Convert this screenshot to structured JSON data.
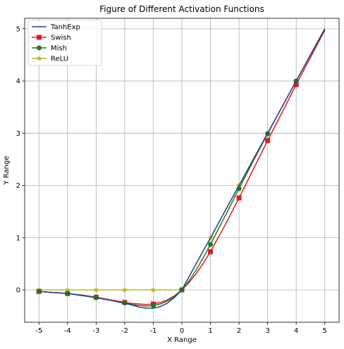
{
  "chart_data": {
    "type": "line",
    "title": "Figure of Different Activation Functions",
    "xlabel": "X Range",
    "ylabel": "Y Range",
    "xlim": [
      -5.5,
      5.5
    ],
    "ylim": [
      -0.62,
      5.2
    ],
    "xticks": [
      "-5",
      "-4",
      "-3",
      "-2",
      "-1",
      "0",
      "1",
      "2",
      "3",
      "4",
      "5"
    ],
    "yticks": [
      "0",
      "1",
      "2",
      "3",
      "4",
      "5"
    ],
    "grid": true,
    "legend_position": "top-left",
    "series": [
      {
        "name": "TanhExp",
        "color": "#2a3f9c",
        "marker": "none",
        "x": [
          -5,
          -4.5,
          -4,
          -3.5,
          -3,
          -2.5,
          -2,
          -1.75,
          -1.5,
          -1.25,
          -1,
          -0.75,
          -0.5,
          -0.25,
          0,
          0.25,
          0.5,
          0.75,
          1,
          1.5,
          2,
          2.5,
          3,
          3.5,
          4,
          4.5,
          5
        ],
        "y": [
          -0.03,
          -0.05,
          -0.07,
          -0.1,
          -0.15,
          -0.2,
          -0.26,
          -0.29,
          -0.33,
          -0.35,
          -0.35,
          -0.32,
          -0.25,
          -0.14,
          0,
          0.25,
          0.5,
          0.75,
          0.99,
          1.5,
          2.0,
          2.5,
          3.0,
          3.5,
          4.0,
          4.5,
          5.0
        ]
      },
      {
        "name": "Swish",
        "color": "#e31a1c",
        "marker": "square",
        "x": [
          -5,
          -4.5,
          -4,
          -3.5,
          -3,
          -2.5,
          -2,
          -1.75,
          -1.5,
          -1.25,
          -1,
          -0.75,
          -0.5,
          -0.25,
          0,
          0.25,
          0.5,
          0.75,
          1,
          1.5,
          2,
          2.5,
          3,
          3.5,
          4,
          4.5,
          5
        ],
        "y": [
          -0.03,
          -0.05,
          -0.07,
          -0.1,
          -0.14,
          -0.19,
          -0.24,
          -0.26,
          -0.27,
          -0.28,
          -0.27,
          -0.24,
          -0.19,
          -0.11,
          0,
          0.14,
          0.31,
          0.51,
          0.73,
          1.23,
          1.76,
          2.31,
          2.86,
          3.39,
          3.93,
          4.45,
          4.97
        ],
        "marker_x": [
          -5,
          -4,
          -3,
          -2,
          -1,
          0,
          1,
          2,
          3,
          4
        ],
        "marker_y": [
          -0.03,
          -0.07,
          -0.14,
          -0.24,
          -0.27,
          0,
          0.73,
          1.76,
          2.86,
          3.93
        ]
      },
      {
        "name": "Mish",
        "color": "#1e7b1e",
        "marker": "circle",
        "x": [
          -5,
          -4.5,
          -4,
          -3.5,
          -3,
          -2.5,
          -2,
          -1.75,
          -1.5,
          -1.25,
          -1,
          -0.75,
          -0.5,
          -0.25,
          0,
          0.25,
          0.5,
          0.75,
          1,
          1.5,
          2,
          2.5,
          3,
          3.5,
          4,
          4.5,
          5
        ],
        "y": [
          -0.03,
          -0.05,
          -0.07,
          -0.11,
          -0.15,
          -0.2,
          -0.25,
          -0.28,
          -0.3,
          -0.31,
          -0.3,
          -0.27,
          -0.21,
          -0.12,
          0,
          0.17,
          0.38,
          0.62,
          0.87,
          1.4,
          1.94,
          2.47,
          2.99,
          3.5,
          4.0,
          4.5,
          5.0
        ],
        "marker_x": [
          -5,
          -4,
          -3,
          -2,
          -1,
          0,
          1,
          2,
          3,
          4
        ],
        "marker_y": [
          -0.03,
          -0.07,
          -0.15,
          -0.25,
          -0.3,
          0,
          0.87,
          1.94,
          2.99,
          4.0
        ]
      },
      {
        "name": "ReLU",
        "color": "#bcbd22",
        "marker": "star",
        "x": [
          -5,
          0,
          5
        ],
        "y": [
          0,
          0,
          5
        ],
        "marker_x": [
          -5,
          -4,
          -3,
          -2,
          -1,
          0,
          1,
          2,
          3,
          4
        ],
        "marker_y": [
          0,
          0,
          0,
          0,
          0,
          0,
          1,
          2,
          3,
          4
        ]
      }
    ]
  }
}
